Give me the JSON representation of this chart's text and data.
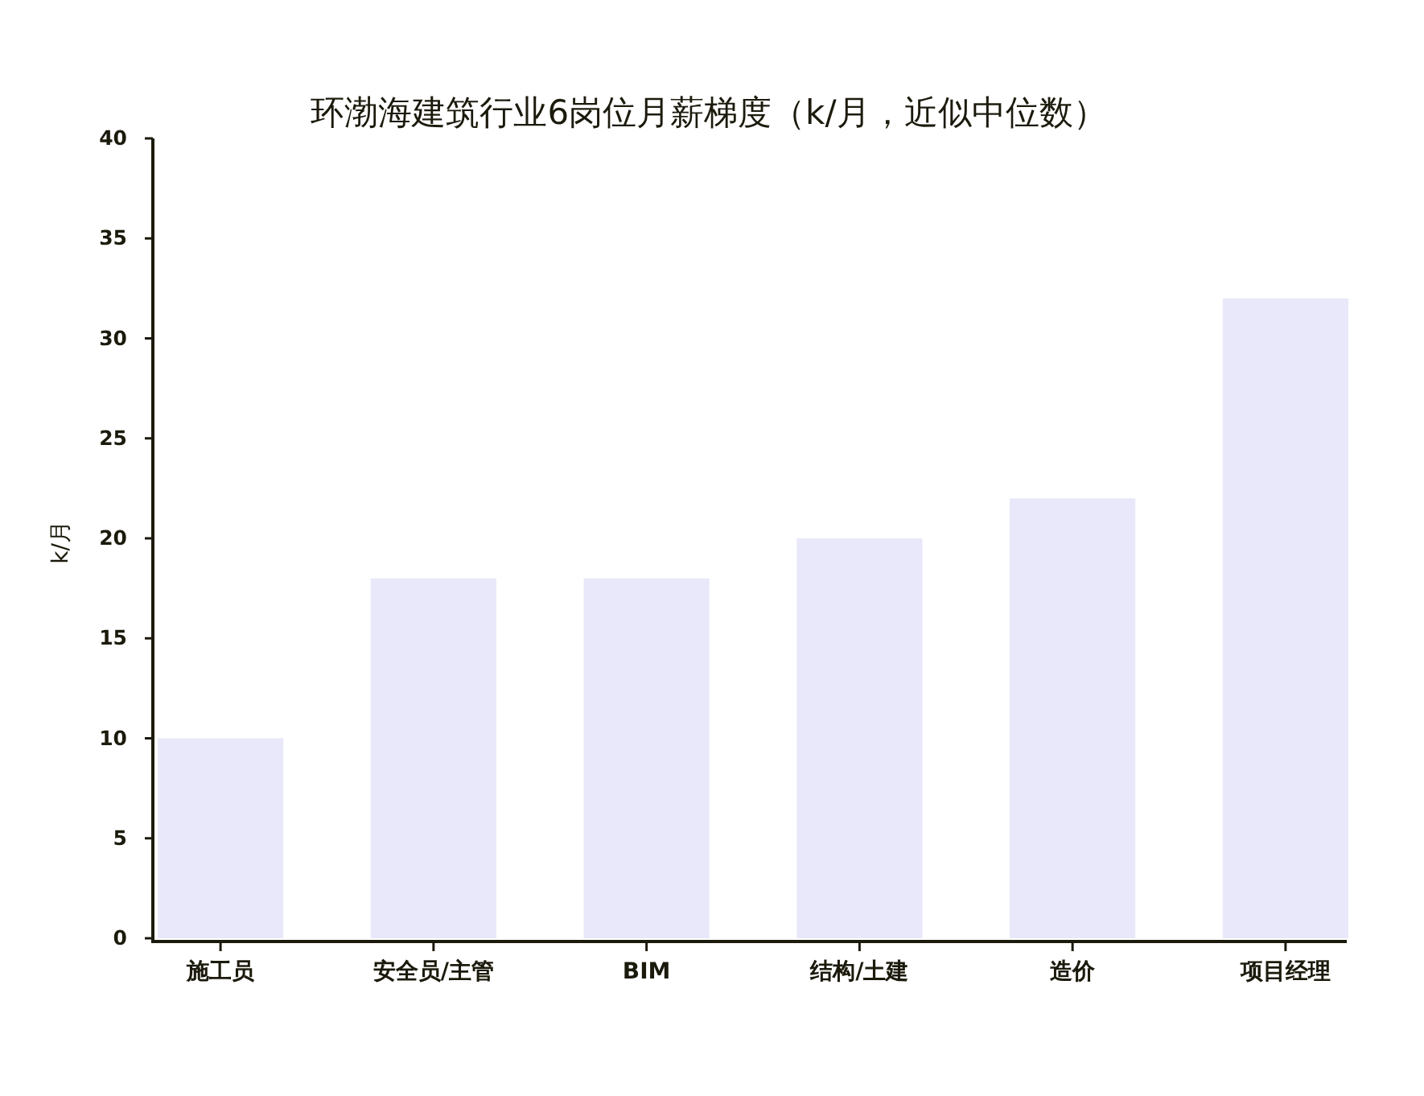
{
  "chart_data": {
    "type": "bar",
    "title": "环渤海建筑行业6岗位月薪梯度（k/月，近似中位数）",
    "ylabel": "k/月",
    "categories": [
      "施工员",
      "安全员/主管",
      "BIM",
      "结构/土建",
      "造价",
      "项目经理"
    ],
    "values": [
      10,
      18,
      18,
      20,
      22,
      32
    ],
    "color": "#e8e8fa",
    "ylim": [
      0,
      40
    ],
    "yticks": [
      0,
      5,
      10,
      15,
      20,
      25,
      30,
      35,
      40
    ],
    "grid": false
  }
}
